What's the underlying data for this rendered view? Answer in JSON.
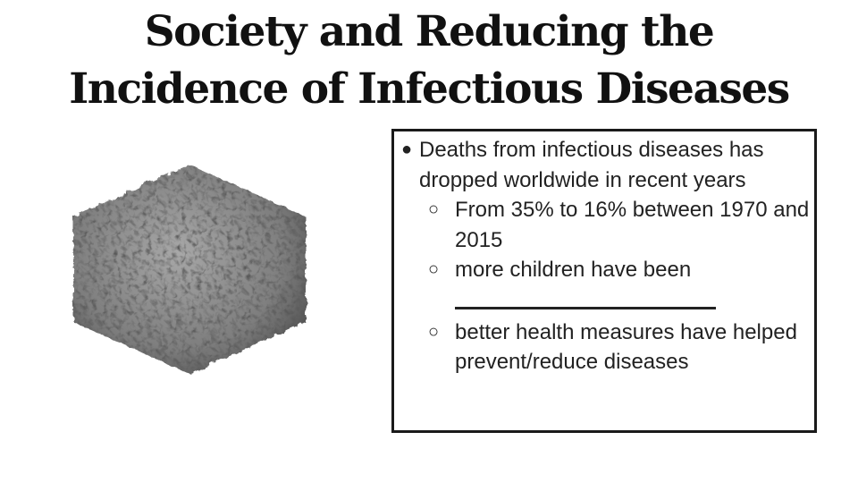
{
  "slide": {
    "title_line1": "Society and Reducing the",
    "title_line2": "Incidence of Infectious Diseases"
  },
  "content": {
    "bullet_marker": "●",
    "sub_marker": "○",
    "main_bullet": "Deaths from infectious diseases has dropped worldwide in recent years",
    "sub_items": [
      "From 35% to 16% between 1970 and 2015",
      "more children have been",
      "better health measures have helped prevent/reduce diseases"
    ]
  },
  "image": {
    "icon": "virus-capsid-icon",
    "color": "#8a8a8a"
  }
}
